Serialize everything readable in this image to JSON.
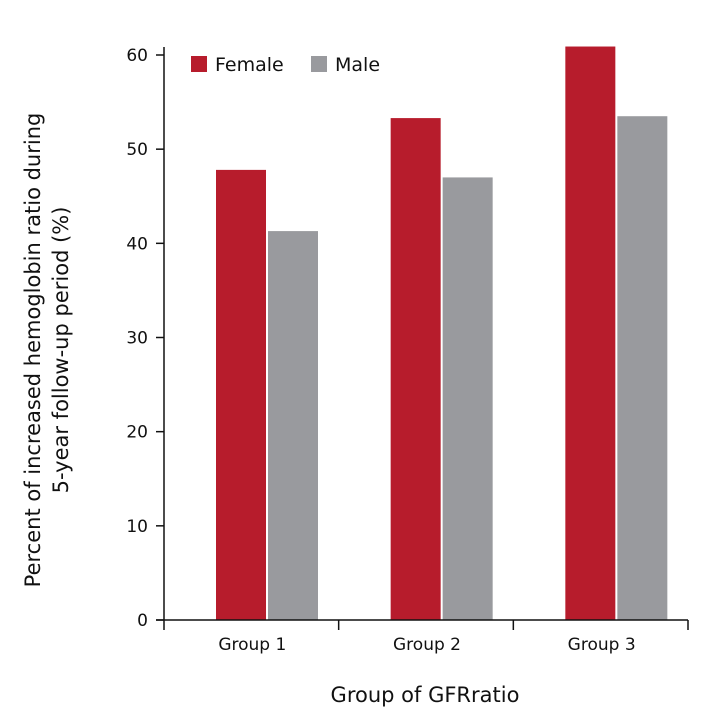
{
  "chart_data": {
    "type": "bar",
    "categories": [
      "Group 1",
      "Group 2",
      "Group 3"
    ],
    "series": [
      {
        "name": "Female",
        "values": [
          47.8,
          53.3,
          60.9
        ]
      },
      {
        "name": "Male",
        "values": [
          41.3,
          47.0,
          53.5
        ]
      }
    ],
    "colors": {
      "Female": "#b71c2c",
      "Male": "#999a9e"
    },
    "title": "",
    "xlabel": "Group of GFRratio",
    "ylabel_line1": "Percent of increased hemoglobin ratio during",
    "ylabel_line2": "5-year follow-up period (%)",
    "ylim": [
      0,
      60
    ],
    "yticks": [
      0,
      10,
      20,
      30,
      40,
      50,
      60
    ],
    "grid": false,
    "legend_position": "top-left"
  }
}
